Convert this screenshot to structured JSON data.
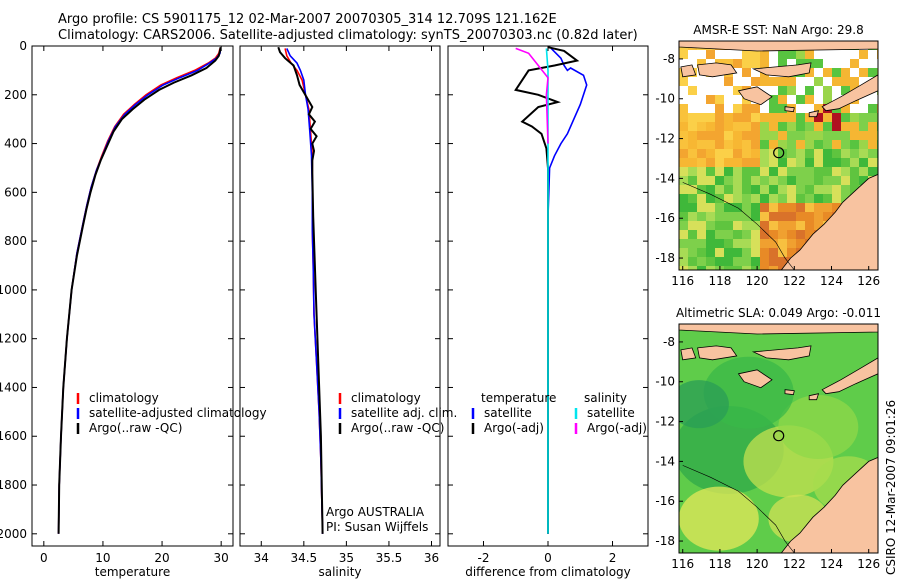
{
  "title_line1": "Argo profile: CS 5901175_12 02-Mar-2007 20070305_314 12.709S 121.162E",
  "title_line2": "Climatology: CARS2006. Satellite-adjusted climatology: synTS_20070303.nc (0.82d later)",
  "credit": "CSIRO 12-Mar-2007 09:01:26",
  "colors": {
    "climatology": "#ff0000",
    "satellite": "#0000ff",
    "argo": "#000000",
    "sat_diff": "#00e5ee",
    "argo_diff_sal": "#ff00ff"
  },
  "chart_data": [
    {
      "type": "line",
      "xlabel": "temperature",
      "xlim": [
        -2,
        32
      ],
      "ylim": [
        2050,
        0
      ],
      "xticks": [
        "0",
        "10",
        "20",
        "30"
      ],
      "yticks": [
        "0",
        "200",
        "400",
        "600",
        "800",
        "1000",
        "1200",
        "1400",
        "1600",
        "1800",
        "2000"
      ],
      "legend": [
        "climatology",
        "satellite-adjusted climatology",
        "Argo(..raw -QC)"
      ],
      "series": [
        {
          "name": "climatology",
          "color": "#ff0000",
          "x": [
            29.8,
            29.6,
            29.0,
            27.8,
            25.5,
            22.5,
            19.8,
            17.3,
            15.3,
            13.5,
            12.0,
            10.8,
            9.8,
            8.9,
            8.0,
            7.3,
            6.7,
            5.6,
            4.7,
            3.9,
            3.3,
            2.9,
            2.6,
            2.5
          ],
          "y": [
            10,
            30,
            50,
            70,
            100,
            130,
            160,
            200,
            240,
            280,
            330,
            390,
            450,
            510,
            580,
            650,
            720,
            850,
            1000,
            1200,
            1400,
            1600,
            1800,
            2000
          ]
        },
        {
          "name": "satellite-adjusted climatology",
          "color": "#0000ff",
          "x": [
            29.9,
            29.8,
            29.2,
            28.0,
            26.0,
            23.0,
            20.2,
            17.6,
            15.5,
            13.7,
            12.1,
            10.9,
            9.9,
            8.9,
            8.0,
            7.3,
            6.7,
            5.6,
            4.7,
            3.9,
            3.3,
            2.9,
            2.6,
            2.5
          ],
          "y": [
            10,
            30,
            50,
            70,
            100,
            130,
            160,
            200,
            240,
            280,
            330,
            390,
            450,
            510,
            580,
            650,
            720,
            850,
            1000,
            1200,
            1400,
            1600,
            1800,
            2000
          ]
        },
        {
          "name": "Argo(..raw -QC)",
          "color": "#000000",
          "x": [
            29.9,
            29.8,
            29.6,
            29.0,
            27.5,
            25.0,
            22.0,
            19.5,
            17.0,
            15.0,
            13.2,
            11.8,
            10.7,
            9.6,
            8.7,
            7.9,
            7.2,
            6.6,
            5.6,
            4.7,
            3.9,
            3.3,
            2.9,
            2.6,
            2.5
          ],
          "y": [
            5,
            20,
            40,
            60,
            90,
            120,
            150,
            180,
            220,
            260,
            300,
            350,
            410,
            470,
            530,
            600,
            670,
            740,
            860,
            1000,
            1200,
            1400,
            1600,
            1800,
            2000
          ]
        }
      ]
    },
    {
      "type": "line",
      "xlabel": "salinity",
      "xlim": [
        33.75,
        36.1
      ],
      "ylim": [
        2050,
        0
      ],
      "xticks": [
        "34",
        "34.5",
        "35",
        "35.5",
        "36"
      ],
      "legend": [
        "climatology",
        "satellite adj. clim.",
        "Argo(..raw -QC)"
      ],
      "annotation": [
        "Argo AUSTRALIA",
        "PI: Susan Wijffels"
      ],
      "series": [
        {
          "name": "climatology",
          "color": "#ff0000",
          "x": [
            34.28,
            34.3,
            34.35,
            34.42,
            34.48,
            34.52,
            34.56,
            34.58,
            34.6,
            34.6,
            34.6,
            34.61,
            34.62,
            34.65,
            34.68,
            34.7,
            34.72
          ],
          "y": [
            10,
            40,
            70,
            100,
            140,
            200,
            260,
            350,
            450,
            600,
            750,
            900,
            1100,
            1300,
            1500,
            1700,
            2000
          ]
        },
        {
          "name": "satellite adj. clim.",
          "color": "#0000ff",
          "x": [
            34.3,
            34.34,
            34.42,
            34.46,
            34.5,
            34.52,
            34.55,
            34.57,
            34.59,
            34.6,
            34.6,
            34.61,
            34.62,
            34.65,
            34.68,
            34.7,
            34.72
          ],
          "y": [
            10,
            40,
            70,
            100,
            140,
            200,
            260,
            350,
            450,
            600,
            750,
            900,
            1100,
            1300,
            1500,
            1700,
            2000
          ]
        },
        {
          "name": "Argo(..raw -QC)",
          "color": "#000000",
          "x": [
            34.2,
            34.22,
            34.28,
            34.38,
            34.42,
            34.45,
            34.5,
            34.55,
            34.6,
            34.56,
            34.63,
            34.58,
            34.65,
            34.6,
            34.62,
            34.6,
            34.6,
            34.61,
            34.64,
            34.67,
            34.7,
            34.72
          ],
          "y": [
            5,
            25,
            50,
            80,
            120,
            160,
            190,
            220,
            250,
            280,
            310,
            340,
            370,
            400,
            430,
            470,
            520,
            700,
            1000,
            1300,
            1600,
            2000
          ]
        }
      ]
    },
    {
      "type": "line",
      "xlabel": "difference from climatology",
      "xlim": [
        -3.1,
        3.1
      ],
      "ylim": [
        2050,
        0
      ],
      "xticks": [
        "-2",
        "0",
        "2"
      ],
      "legend": [
        "temperature",
        "satellite",
        "Argo(-adj)",
        "salinity",
        "satellite",
        "Argo(-adj)"
      ],
      "series": [
        {
          "name": "satellite",
          "color": "#0000ff",
          "x": [
            0.1,
            0.4,
            0.5,
            0.6,
            0.7,
            1.1,
            1.2,
            1.0,
            0.8,
            0.6,
            0.4,
            0.2,
            0.05,
            0.0,
            0.0
          ],
          "y": [
            10,
            50,
            80,
            100,
            90,
            120,
            160,
            240,
            300,
            360,
            400,
            450,
            500,
            700,
            2000
          ]
        },
        {
          "name": "Argo(-adj)",
          "color": "#000000",
          "x": [
            0.0,
            0.5,
            0.7,
            0.9,
            0.2,
            -0.6,
            -1.0,
            -0.3,
            0.3,
            -0.3,
            -0.8,
            -0.5,
            -0.2,
            -0.05,
            0.0,
            0.0
          ],
          "y": [
            5,
            20,
            40,
            60,
            80,
            100,
            180,
            200,
            230,
            250,
            310,
            330,
            360,
            420,
            500,
            2000
          ]
        },
        {
          "name": "satellite",
          "color": "#00e5ee",
          "x": [
            -0.05,
            0.0,
            0.0,
            0.0,
            0.0,
            0.0
          ],
          "y": [
            10,
            100,
            300,
            600,
            1200,
            2000
          ]
        },
        {
          "name": "Argo(-adj)",
          "color": "#ff00ff",
          "x": [
            -1.0,
            -0.6,
            -0.3,
            0.0,
            -0.05,
            0.0
          ],
          "y": [
            10,
            30,
            80,
            130,
            200,
            400
          ]
        }
      ]
    },
    {
      "type": "heatmap",
      "title": "AMSR-E SST: NaN Argo: 29.8",
      "xlim": [
        115.8,
        126.5
      ],
      "ylim": [
        -18.6,
        -7.1
      ],
      "xticks": [
        "116",
        "118",
        "120",
        "122",
        "124",
        "126"
      ],
      "yticks": [
        "-8",
        "-10",
        "-12",
        "-14",
        "-16",
        "-18"
      ],
      "argo_position": [
        121.16,
        -12.71
      ]
    },
    {
      "type": "heatmap",
      "title": "Altimetric SLA: 0.049 Argo: -0.011",
      "xlim": [
        115.8,
        126.5
      ],
      "ylim": [
        -18.6,
        -7.1
      ],
      "xticks": [
        "116",
        "118",
        "120",
        "122",
        "124",
        "126"
      ],
      "yticks": [
        "-8",
        "-10",
        "-12",
        "-14",
        "-16",
        "-18"
      ],
      "argo_position": [
        121.16,
        -12.71
      ]
    }
  ]
}
